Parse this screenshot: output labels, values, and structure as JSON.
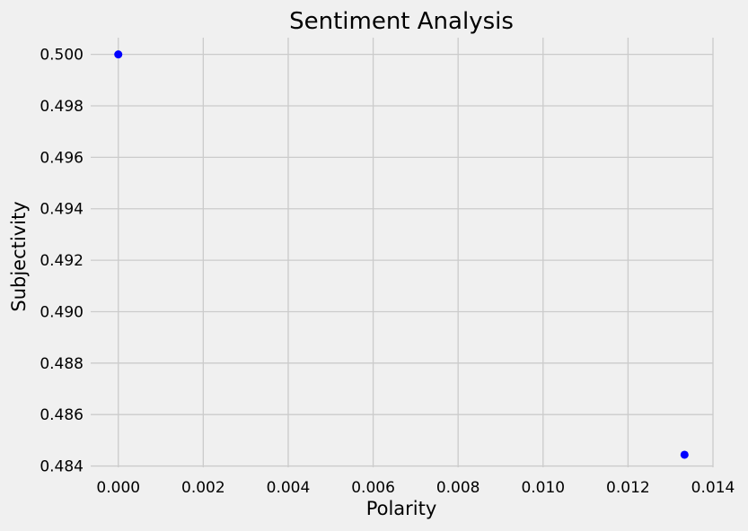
{
  "chart_data": {
    "type": "scatter",
    "title": "Sentiment Analysis",
    "xlabel": "Polarity",
    "ylabel": "Subjectivity",
    "xlim": [
      -0.00065,
      0.014
    ],
    "ylim": [
      0.48395,
      0.50065
    ],
    "xticks": [
      0.0,
      0.002,
      0.004,
      0.006,
      0.008,
      0.01,
      0.012,
      0.014
    ],
    "xtick_labels": [
      "0.000",
      "0.002",
      "0.004",
      "0.006",
      "0.008",
      "0.010",
      "0.012",
      "0.014"
    ],
    "yticks": [
      0.484,
      0.486,
      0.488,
      0.49,
      0.492,
      0.494,
      0.496,
      0.498,
      0.5
    ],
    "ytick_labels": [
      "0.484",
      "0.486",
      "0.488",
      "0.490",
      "0.492",
      "0.494",
      "0.496",
      "0.498",
      "0.500"
    ],
    "grid": true,
    "series": [
      {
        "color": "#0000ff",
        "points": [
          {
            "x": 0.0,
            "y": 0.5
          },
          {
            "x": 0.01333,
            "y": 0.48444
          }
        ]
      }
    ]
  },
  "colors": {
    "background": "#f0f0f0",
    "grid": "#cbcbcb",
    "marker": "#0000ff"
  }
}
